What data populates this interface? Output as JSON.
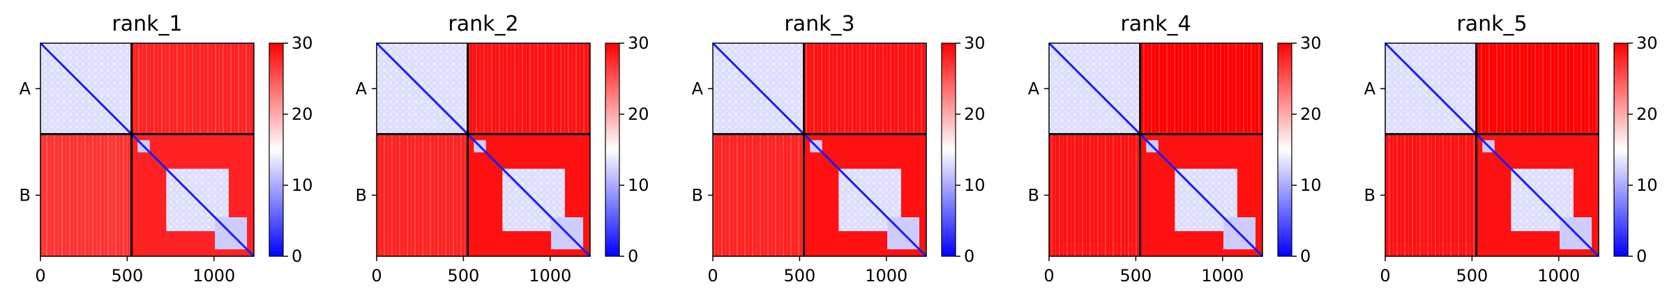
{
  "chart_data": [
    {
      "type": "heatmap",
      "title": "rank_1",
      "chains": [
        "A",
        "B"
      ],
      "chain_boundary": 525,
      "total_residues": 1230,
      "xlim": [
        0,
        1230
      ],
      "xticks": [
        "0",
        "500",
        "1000"
      ],
      "yticks": [
        "A",
        "B"
      ],
      "colorbar": {
        "min": 0,
        "max": 30,
        "ticks": [
          "0",
          "10",
          "20",
          "30"
        ],
        "colors": [
          "#0000ff",
          "#ffffff",
          "#ff0000"
        ]
      },
      "region_values": {
        "A-A": 13,
        "A-B": 28,
        "B-A": 27,
        "B-B": 28,
        "B-domain-2": 13,
        "B-domain-3": 12
      }
    },
    {
      "type": "heatmap",
      "title": "rank_2",
      "chains": [
        "A",
        "B"
      ],
      "chain_boundary": 525,
      "total_residues": 1230,
      "xlim": [
        0,
        1230
      ],
      "xticks": [
        "0",
        "500",
        "1000"
      ],
      "yticks": [
        "A",
        "B"
      ],
      "colorbar": {
        "min": 0,
        "max": 30,
        "ticks": [
          "0",
          "10",
          "20",
          "30"
        ],
        "colors": [
          "#0000ff",
          "#ffffff",
          "#ff0000"
        ]
      },
      "region_values": {
        "A-A": 13,
        "A-B": 29,
        "B-A": 28,
        "B-B": 29,
        "B-domain-2": 13,
        "B-domain-3": 12
      }
    },
    {
      "type": "heatmap",
      "title": "rank_3",
      "chains": [
        "A",
        "B"
      ],
      "chain_boundary": 525,
      "total_residues": 1230,
      "xlim": [
        0,
        1230
      ],
      "xticks": [
        "0",
        "500",
        "1000"
      ],
      "yticks": [
        "A",
        "B"
      ],
      "colorbar": {
        "min": 0,
        "max": 30,
        "ticks": [
          "0",
          "10",
          "20",
          "30"
        ],
        "colors": [
          "#0000ff",
          "#ffffff",
          "#ff0000"
        ]
      },
      "region_values": {
        "A-A": 13,
        "A-B": 29,
        "B-A": 28,
        "B-B": 29,
        "B-domain-2": 13,
        "B-domain-3": 12
      }
    },
    {
      "type": "heatmap",
      "title": "rank_4",
      "chains": [
        "A",
        "B"
      ],
      "chain_boundary": 525,
      "total_residues": 1230,
      "xlim": [
        0,
        1230
      ],
      "xticks": [
        "0",
        "500",
        "1000"
      ],
      "yticks": [
        "A",
        "B"
      ],
      "colorbar": {
        "min": 0,
        "max": 30,
        "ticks": [
          "0",
          "10",
          "20",
          "30"
        ],
        "colors": [
          "#0000ff",
          "#ffffff",
          "#ff0000"
        ]
      },
      "region_values": {
        "A-A": 13,
        "A-B": 30,
        "B-A": 29,
        "B-B": 29,
        "B-domain-2": 13,
        "B-domain-3": 12
      }
    },
    {
      "type": "heatmap",
      "title": "rank_5",
      "chains": [
        "A",
        "B"
      ],
      "chain_boundary": 525,
      "total_residues": 1230,
      "xlim": [
        0,
        1230
      ],
      "xticks": [
        "0",
        "500",
        "1000"
      ],
      "yticks": [
        "A",
        "B"
      ],
      "colorbar": {
        "min": 0,
        "max": 30,
        "ticks": [
          "0",
          "10",
          "20",
          "30"
        ],
        "colors": [
          "#0000ff",
          "#ffffff",
          "#ff0000"
        ]
      },
      "region_values": {
        "A-A": 13,
        "A-B": 30,
        "B-A": 29,
        "B-B": 29,
        "B-domain-2": 13,
        "B-domain-3": 12
      }
    }
  ]
}
